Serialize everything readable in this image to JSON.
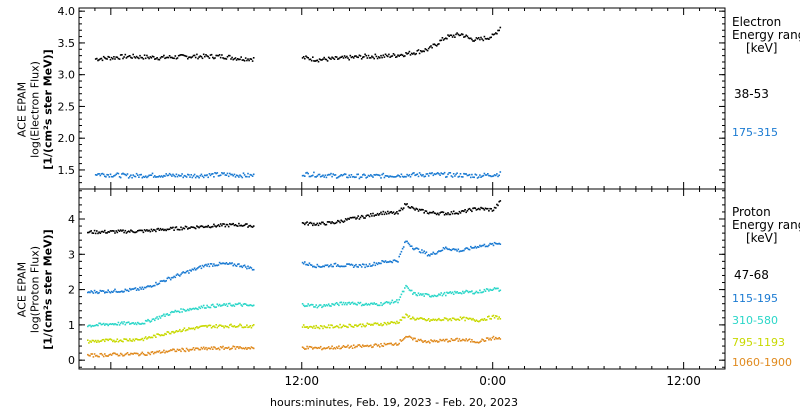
{
  "chart_data": [
    {
      "type": "scatter",
      "ylabel": [
        "ACE EPAM",
        "log(Electron Flux)",
        "[1/(cm²s ster MeV)]"
      ],
      "ylim": [
        1.2,
        4.05
      ],
      "yticks": [
        "1.5",
        "2.0",
        "2.5",
        "3.0",
        "3.5",
        "4.0"
      ],
      "xlim": [
        -14,
        26.6
      ],
      "legend": {
        "title": [
          "Electron",
          "Energy range",
          "[keV]"
        ],
        "placement": "right"
      },
      "series": [
        {
          "name": "38-53",
          "color": "#000000",
          "x": [
            -13,
            -11,
            -9,
            -7,
            -5,
            -4,
            -3,
            -2,
            0,
            1,
            2,
            3,
            4,
            5,
            6,
            7,
            8,
            9,
            10,
            10.5,
            11,
            12,
            12.5
          ],
          "y": [
            3.26,
            3.3,
            3.28,
            3.3,
            3.3,
            3.27,
            3.26,
            null,
            3.28,
            3.25,
            3.26,
            3.28,
            3.3,
            3.3,
            3.32,
            3.36,
            3.42,
            3.6,
            3.65,
            3.58,
            3.56,
            3.62,
            3.78
          ]
        },
        {
          "name": "175-315",
          "color": "#1a7ad2",
          "x": [
            -13,
            -11,
            -9,
            -7,
            -5,
            -4,
            -3,
            -2,
            0,
            2,
            4,
            6,
            8,
            10,
            11,
            12.5
          ],
          "y": [
            1.45,
            1.42,
            1.43,
            1.42,
            1.44,
            1.43,
            1.42,
            null,
            1.45,
            1.42,
            1.41,
            1.43,
            1.44,
            1.43,
            1.42,
            1.45
          ]
        }
      ]
    },
    {
      "type": "scatter",
      "ylabel": [
        "ACE EPAM",
        "log(Proton Flux)",
        "[1/(cm²s ster MeV)]"
      ],
      "ylim": [
        -0.25,
        4.85
      ],
      "yticks": [
        "0",
        "1",
        "2",
        "3",
        "4"
      ],
      "xlim": [
        -14,
        26.6
      ],
      "xticks": [
        "12:00",
        "0:00",
        "12:00"
      ],
      "xlabel": "hours:minutes, Feb. 19, 2023 - Feb. 20, 2023",
      "legend": {
        "title": [
          "Proton",
          "Energy range",
          "[keV]"
        ],
        "placement": "right"
      },
      "series": [
        {
          "name": "47-68",
          "color": "#000000",
          "x": [
            -13.5,
            -12,
            -10,
            -8,
            -6,
            -4,
            -3,
            -2,
            0,
            1,
            2,
            3,
            4,
            5,
            6,
            6.5,
            7,
            8,
            9,
            10,
            11,
            12,
            12.5
          ],
          "y": [
            3.65,
            3.66,
            3.68,
            3.75,
            3.82,
            3.86,
            3.82,
            null,
            3.9,
            3.88,
            3.92,
            4.02,
            4.1,
            4.2,
            4.18,
            4.45,
            4.3,
            4.2,
            4.18,
            4.22,
            4.32,
            4.28,
            4.55
          ]
        },
        {
          "name": "115-195",
          "color": "#1a7ad2",
          "x": [
            -13.5,
            -11,
            -10,
            -8,
            -6,
            -5,
            -4,
            -3,
            -2,
            0,
            1,
            2,
            3,
            4,
            5,
            6,
            6.5,
            7,
            8,
            9,
            10,
            11,
            12,
            12.5
          ],
          "y": [
            1.95,
            2.0,
            2.05,
            2.4,
            2.72,
            2.75,
            2.72,
            2.6,
            null,
            2.78,
            2.68,
            2.72,
            2.7,
            2.7,
            2.8,
            2.85,
            3.4,
            3.2,
            3.0,
            3.2,
            3.12,
            3.25,
            3.3,
            3.35
          ]
        },
        {
          "name": "310-580",
          "color": "#2ad6c8",
          "x": [
            -13.5,
            -12,
            -10,
            -8,
            -6,
            -4,
            -3,
            -2,
            0,
            1,
            2,
            3,
            4,
            5,
            6,
            6.5,
            7,
            8,
            9,
            10,
            11,
            12,
            12.5
          ],
          "y": [
            1.0,
            1.05,
            1.08,
            1.4,
            1.55,
            1.6,
            1.55,
            null,
            1.6,
            1.55,
            1.6,
            1.65,
            1.6,
            1.62,
            1.7,
            2.1,
            1.9,
            1.85,
            1.9,
            1.95,
            1.95,
            2.05,
            2.0
          ]
        },
        {
          "name": "795-1193",
          "color": "#c8d900",
          "x": [
            -13.5,
            -12,
            -10,
            -8,
            -6,
            -4,
            -3,
            -2,
            0,
            1,
            2,
            3,
            4,
            5,
            6,
            6.5,
            7,
            8,
            9,
            10,
            11,
            12,
            12.5
          ],
          "y": [
            0.55,
            0.58,
            0.62,
            0.85,
            0.98,
            1.0,
            0.98,
            null,
            0.98,
            0.96,
            0.98,
            1.0,
            1.02,
            1.05,
            1.1,
            1.28,
            1.2,
            1.15,
            1.18,
            1.2,
            1.15,
            1.25,
            1.22
          ]
        },
        {
          "name": "1060-1900",
          "color": "#e08a1e",
          "x": [
            -13.5,
            -12,
            -10,
            -8,
            -6,
            -4,
            -3,
            -2,
            0,
            1,
            2,
            3,
            4,
            5,
            6,
            6.5,
            7,
            8,
            9,
            10,
            11,
            12,
            12.5
          ],
          "y": [
            0.15,
            0.18,
            0.2,
            0.3,
            0.35,
            0.38,
            0.35,
            null,
            0.38,
            0.36,
            0.38,
            0.4,
            0.42,
            0.45,
            0.5,
            0.7,
            0.6,
            0.55,
            0.58,
            0.6,
            0.55,
            0.65,
            0.62
          ]
        }
      ]
    }
  ]
}
